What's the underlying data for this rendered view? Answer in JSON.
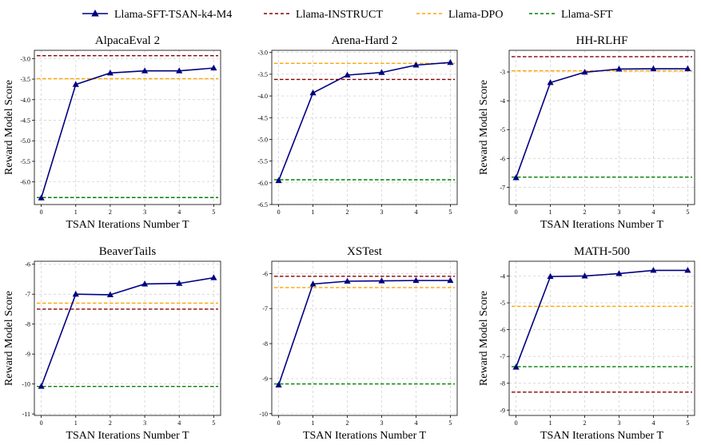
{
  "colors": {
    "series": "#000080",
    "instruct": "#8b0000",
    "dpo": "#ffa500",
    "sft": "#008000",
    "grid": "#cccccc"
  },
  "legend": [
    {
      "key": "series",
      "label": "Llama-SFT-TSAN-k4-M4"
    },
    {
      "key": "instruct",
      "label": "Llama-INSTRUCT"
    },
    {
      "key": "dpo",
      "label": "Llama-DPO"
    },
    {
      "key": "sft",
      "label": "Llama-SFT"
    }
  ],
  "chart_data": [
    {
      "type": "line",
      "title": "AlpacaEval 2",
      "xlabel": "TSAN Iterations Number T",
      "ylabel": "Reward Model Score",
      "x": [
        0,
        1,
        2,
        3,
        4,
        5
      ],
      "series": [
        {
          "name": "Llama-SFT-TSAN-k4-M4",
          "values": [
            -6.39,
            -3.63,
            -3.35,
            -3.3,
            -3.3,
            -3.23
          ]
        }
      ],
      "baselines": {
        "Llama-INSTRUCT": -2.93,
        "Llama-DPO": -3.49,
        "Llama-SFT": -6.38
      },
      "ylim": [
        -6.55,
        -2.8
      ],
      "yticks": [
        -6.0,
        -5.5,
        -5.0,
        -4.5,
        -4.0,
        -3.5,
        -3.0
      ],
      "ytick_labels": [
        "-6.0",
        "-5.5",
        "-5.0",
        "-4.5",
        "-4.0",
        "-3.5",
        "-3.0"
      ]
    },
    {
      "type": "line",
      "title": "Arena-Hard 2",
      "xlabel": "",
      "ylabel": "",
      "x": [
        0,
        1,
        2,
        3,
        4,
        5
      ],
      "series": [
        {
          "name": "Llama-SFT-TSAN-k4-M4",
          "values": [
            -5.95,
            -3.93,
            -3.52,
            -3.46,
            -3.29,
            -3.23
          ]
        }
      ],
      "baselines": {
        "Llama-INSTRUCT": -3.62,
        "Llama-DPO": -3.25,
        "Llama-SFT": -5.93
      },
      "ylim": [
        -6.5,
        -2.95
      ],
      "yticks": [
        -6.5,
        -6.0,
        -5.5,
        -5.0,
        -4.5,
        -4.0,
        -3.5,
        -3.0
      ],
      "ytick_labels": [
        "-6.5",
        "-6.0",
        "-5.5",
        "-5.0",
        "-4.5",
        "-4.0",
        "-3.5",
        "-3.0"
      ]
    },
    {
      "type": "line",
      "title": "HH-RLHF",
      "xlabel": "TSAN Iterations Number T",
      "ylabel": "Reward Model Score",
      "x": [
        0,
        1,
        2,
        3,
        4,
        5
      ],
      "series": [
        {
          "name": "Llama-SFT-TSAN-k4-M4",
          "values": [
            -6.67,
            -3.37,
            -3.01,
            -2.9,
            -2.89,
            -2.89
          ]
        }
      ],
      "baselines": {
        "Llama-INSTRUCT": -2.47,
        "Llama-DPO": -2.96,
        "Llama-SFT": -6.65
      },
      "ylim": [
        -7.6,
        -2.25
      ],
      "yticks": [
        -7,
        -6,
        -5,
        -4,
        -3
      ],
      "ytick_labels": [
        "-7",
        "-6",
        "-5",
        "-4",
        "-3"
      ]
    },
    {
      "type": "line",
      "title": "BeaverTails",
      "xlabel": "TSAN Iterations Number T",
      "ylabel": "Reward Model Score",
      "x": [
        0,
        1,
        2,
        3,
        4,
        5
      ],
      "series": [
        {
          "name": "Llama-SFT-TSAN-k4-M4",
          "values": [
            -10.08,
            -7.0,
            -7.02,
            -6.66,
            -6.64,
            -6.45
          ]
        }
      ],
      "baselines": {
        "Llama-INSTRUCT": -7.5,
        "Llama-DPO": -7.3,
        "Llama-SFT": -10.08
      },
      "ylim": [
        -11.05,
        -5.9
      ],
      "yticks": [
        -11,
        -10,
        -9,
        -8,
        -7,
        -6
      ],
      "ytick_labels": [
        "-11",
        "-10",
        "-9",
        "-8",
        "-7",
        "-6"
      ]
    },
    {
      "type": "line",
      "title": "XSTest",
      "xlabel": "TSAN Iterations Number T",
      "ylabel": "",
      "x": [
        0,
        1,
        2,
        3,
        4,
        5
      ],
      "series": [
        {
          "name": "Llama-SFT-TSAN-k4-M4",
          "values": [
            -9.18,
            -6.3,
            -6.22,
            -6.21,
            -6.2,
            -6.2
          ]
        }
      ],
      "baselines": {
        "Llama-INSTRUCT": -6.08,
        "Llama-DPO": -6.4,
        "Llama-SFT": -9.15
      },
      "ylim": [
        -10.05,
        -5.65
      ],
      "yticks": [
        -10,
        -9,
        -8,
        -7,
        -6
      ],
      "ytick_labels": [
        "-10",
        "-9",
        "-8",
        "-7",
        "-6"
      ]
    },
    {
      "type": "line",
      "title": "MATH-500",
      "xlabel": "TSAN Iterations Number T",
      "ylabel": "Reward Model Score",
      "x": [
        0,
        1,
        2,
        3,
        4,
        5
      ],
      "series": [
        {
          "name": "Llama-SFT-TSAN-k4-M4",
          "values": [
            -7.4,
            -4.02,
            -4.0,
            -3.91,
            -3.79,
            -3.79
          ]
        }
      ],
      "baselines": {
        "Llama-INSTRUCT": -8.33,
        "Llama-DPO": -5.13,
        "Llama-SFT": -7.38
      },
      "ylim": [
        -9.2,
        -3.45
      ],
      "yticks": [
        -9,
        -8,
        -7,
        -6,
        -5,
        -4
      ],
      "ytick_labels": [
        "-9",
        "-8",
        "-7",
        "-6",
        "-5",
        "-4"
      ]
    }
  ]
}
